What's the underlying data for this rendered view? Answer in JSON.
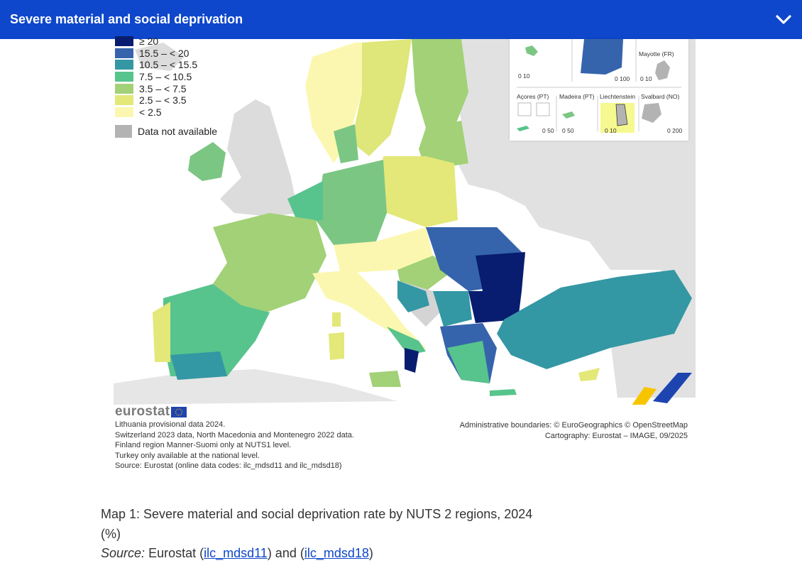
{
  "header": {
    "title": "Severe material and social deprivation",
    "toggle_icon": "chevron-down-icon"
  },
  "legend": {
    "items": [
      {
        "label": "≥ 20",
        "color": "#081d6f"
      },
      {
        "label": "15.5 – < 20",
        "color": "#3664ac"
      },
      {
        "label": "10.5 – < 15.5",
        "color": "#3497a4"
      },
      {
        "label": "7.5 – < 10.5",
        "color": "#58c48d"
      },
      {
        "label": "3.5 – < 7.5",
        "color": "#a2d177"
      },
      {
        "label": "2.5 – < 3.5",
        "color": "#e3e879"
      },
      {
        "label": "< 2.5",
        "color": "#fcf7b0"
      }
    ],
    "not_available": "Data not available",
    "not_available_color": "#b3b3b3"
  },
  "insets": {
    "row1": [
      "Mayotte (FR)"
    ],
    "row2": [
      "Açores (PT)",
      "Madeira (PT)",
      "Liechtenstein",
      "Svalbard (NO)"
    ],
    "scales": [
      "0 10",
      "0 100",
      "0 10",
      "0 50",
      "0 50",
      "0 10",
      "0 200"
    ]
  },
  "footer": {
    "logo_text": "eurostat",
    "notes": [
      "Lithuania provisional data 2024.",
      "Switzerland 2023 data, North Macedonia and Montenegro 2022 data.",
      "Finland region Manner-Suomi only at NUTS1 level.",
      "Turkey only available at the national level.",
      "Source: Eurostat (online data codes: ilc_mdsd11 and ilc_mdsd18)"
    ],
    "credits": [
      "Administrative boundaries: © EuroGeographics © OpenStreetMap",
      "Cartography: Eurostat – IMAGE, 09/2025"
    ]
  },
  "caption": {
    "line1": "Map 1: Severe material and social deprivation rate by NUTS 2 regions, 2024",
    "line2": "(%)",
    "source_label": "Source:",
    "source_text": "Eurostat (",
    "link1": "ilc_mdsd11",
    "mid": ") and (",
    "link2": "ilc_mdsd18",
    "end": ")"
  }
}
